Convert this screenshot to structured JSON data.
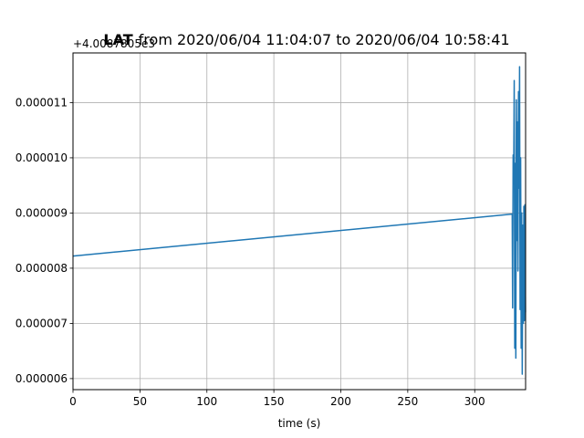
{
  "chart_data": {
    "type": "line",
    "title_prefix": "LAT",
    "title": "from 2020/06/04 11:04:07 to 2020/06/04 10:58:41",
    "xlabel": "time (s)",
    "ylabel": "",
    "y_offset_label": "+4.0087805e3",
    "xlim": [
      0,
      338
    ],
    "ylim": [
      5.8e-06,
      1.19e-05
    ],
    "x_ticks": [
      0,
      50,
      100,
      150,
      200,
      250,
      300
    ],
    "x_tick_labels": [
      "0",
      "50",
      "100",
      "150",
      "200",
      "250",
      "300"
    ],
    "y_ticks": [
      6e-06,
      7e-06,
      8e-06,
      9e-06,
      1e-05,
      1.1e-05
    ],
    "y_tick_labels": [
      "0.000006",
      "0.000007",
      "0.000008",
      "0.000009",
      "0.000010",
      "0.000011"
    ],
    "grid": true,
    "line_color": "#1f77b4",
    "series": [
      {
        "x": [
          0,
          328,
          328.3,
          328.7,
          329.1,
          329.5,
          329.9,
          330.3,
          330.7,
          331.1,
          331.5,
          331.9,
          332.3,
          332.7,
          333.1,
          333.5,
          333.9,
          334.3,
          334.7,
          335.1,
          335.5,
          335.9,
          336.3,
          336.7,
          337.1,
          337.5,
          337.9
        ],
        "y": [
          8.22e-06,
          8.98e-06,
          7.28e-06,
          1.005e-05,
          9.58e-06,
          1.14e-05,
          6.55e-06,
          9.9e-06,
          6.37e-06,
          1.105e-05,
          8.5e-06,
          1.065e-05,
          7.95e-06,
          1.12e-05,
          9.45e-06,
          1.165e-05,
          7.25e-06,
          1e-05,
          6.55e-06,
          9e-06,
          6.08e-06,
          8.78e-06,
          7e-06,
          9.12e-06,
          7.05e-06,
          9.15e-06,
          7.2e-06
        ]
      }
    ]
  }
}
